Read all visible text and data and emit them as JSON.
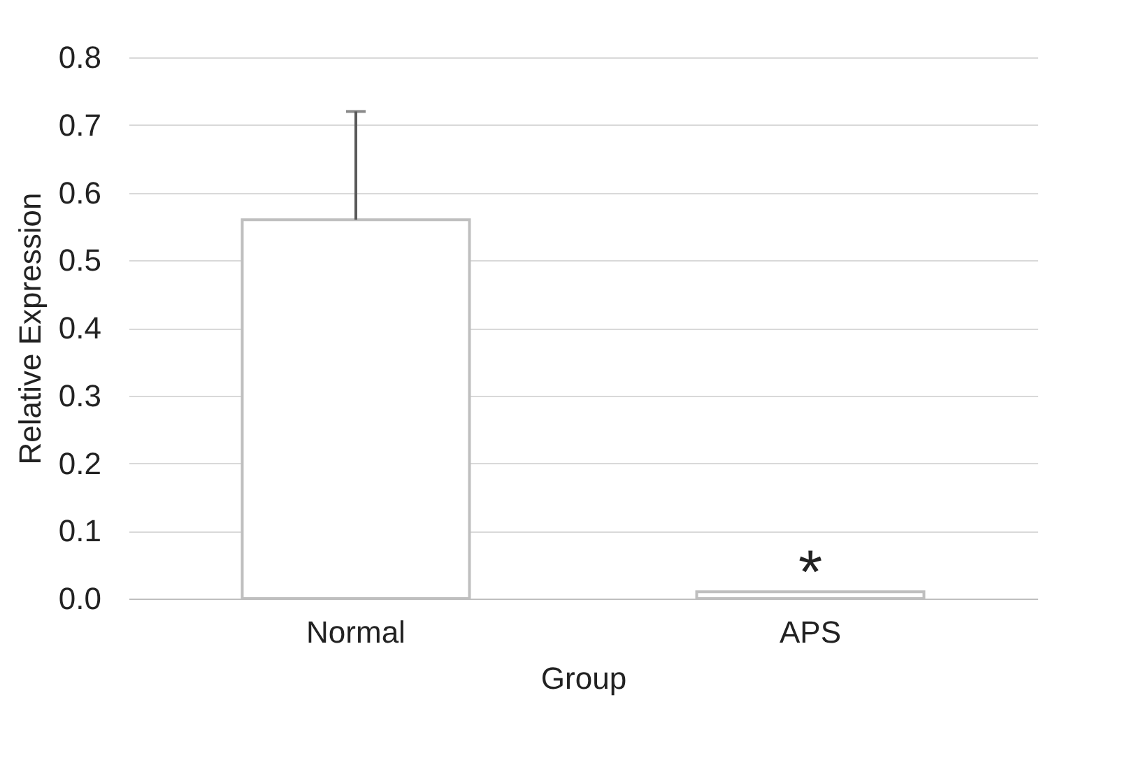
{
  "chart_data": {
    "type": "bar",
    "xlabel": "Group",
    "ylabel": "Relative Expression",
    "categories": [
      "Normal",
      "APS"
    ],
    "values": [
      0.56,
      0.01
    ],
    "colors": [
      "#ffffff",
      "#ffffff"
    ],
    "errors": [
      [
        0.56,
        0.72
      ],
      null
    ],
    "ylim": [
      0,
      0.8
    ],
    "yticks": [
      {
        "value": 0,
        "label": "0.0"
      },
      {
        "value": 0.1,
        "label": "0.1"
      },
      {
        "value": 0.2,
        "label": "0.2"
      },
      {
        "value": 0.3,
        "label": "0.3"
      },
      {
        "value": 0.4,
        "label": "0.4"
      },
      {
        "value": 0.5,
        "label": "0.5"
      },
      {
        "value": 0.6,
        "label": "0.6"
      },
      {
        "value": 0.7,
        "label": "0.7"
      },
      {
        "value": 0.8,
        "label": "0.8"
      }
    ],
    "grid": "y",
    "annotations": [
      "*"
    ]
  }
}
